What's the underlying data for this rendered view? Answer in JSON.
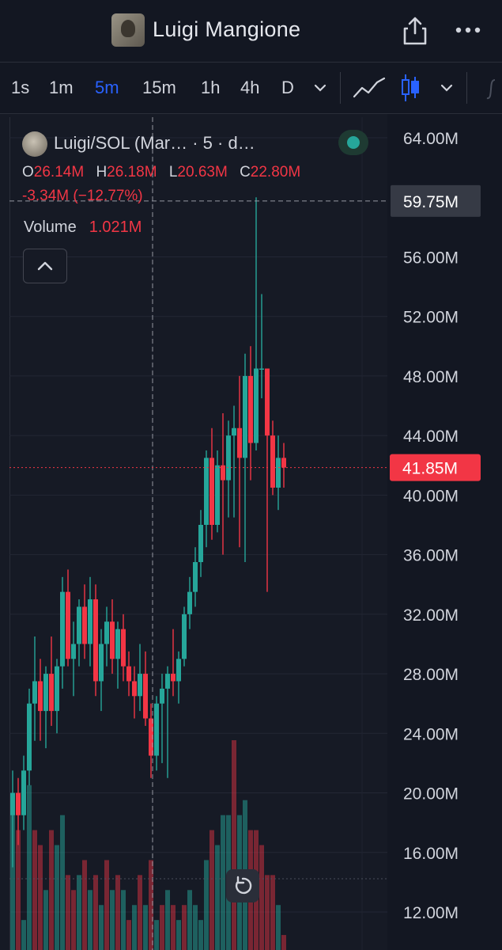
{
  "header": {
    "title": "Luigi Mangione",
    "avatar_icon": "avatar-image",
    "share_icon": "share-icon",
    "more_icon": "more-horizontal-icon"
  },
  "toolbar": {
    "timeframes": [
      "1s",
      "1m",
      "5m",
      "15m",
      "1h",
      "4h",
      "D"
    ],
    "active_timeframe": "5m",
    "accent": "#2962ff"
  },
  "legend": {
    "title": "Luigi/SOL (Mar… · 5 · d…",
    "ohlc": [
      {
        "key": "O",
        "value": "26.14M"
      },
      {
        "key": "H",
        "value": "26.18M"
      },
      {
        "key": "L",
        "value": "20.63M"
      },
      {
        "key": "C",
        "value": "22.80M"
      }
    ],
    "change": "-3.34M (−12.77%)",
    "volume_label": "Volume",
    "volume_value": "1.021M"
  },
  "colors": {
    "up": "#26a69a",
    "down": "#f23645",
    "background": "#161a25"
  },
  "chart_data": {
    "type": "candlestick",
    "ylim": [
      10,
      66
    ],
    "y_ticks": [
      "64.00M",
      "56.00M",
      "52.00M",
      "48.00M",
      "44.00M",
      "40.00M",
      "36.00M",
      "32.00M",
      "28.00M",
      "24.00M",
      "20.00M",
      "16.00M",
      "12.00M"
    ],
    "crosshair_price_label": "59.75M",
    "crosshair_price": 59.75,
    "last_price_label": "41.85M",
    "last_price": 41.85,
    "candles": [
      [
        18.5,
        21.5,
        15.0,
        20.0
      ],
      [
        20.0,
        21.0,
        16.5,
        18.5
      ],
      [
        18.5,
        22.5,
        17.5,
        21.5
      ],
      [
        21.5,
        27.0,
        20.5,
        26.0
      ],
      [
        26.0,
        30.5,
        23.5,
        27.5
      ],
      [
        27.5,
        29.0,
        23.5,
        25.5
      ],
      [
        25.5,
        28.5,
        23.0,
        28.0
      ],
      [
        28.0,
        30.5,
        24.5,
        25.5
      ],
      [
        25.5,
        29.0,
        24.0,
        28.5
      ],
      [
        28.5,
        34.5,
        27.0,
        33.5
      ],
      [
        33.5,
        35.0,
        28.5,
        29.0
      ],
      [
        29.0,
        31.5,
        26.5,
        30.0
      ],
      [
        30.0,
        33.0,
        28.5,
        32.5
      ],
      [
        32.5,
        34.0,
        29.0,
        30.0
      ],
      [
        30.0,
        34.5,
        28.5,
        33.0
      ],
      [
        33.0,
        34.0,
        26.5,
        27.5
      ],
      [
        27.5,
        31.0,
        25.5,
        30.0
      ],
      [
        30.0,
        32.5,
        28.5,
        31.5
      ],
      [
        31.5,
        33.0,
        28.0,
        29.0
      ],
      [
        29.0,
        31.5,
        27.0,
        31.0
      ],
      [
        31.0,
        32.0,
        27.5,
        28.5
      ],
      [
        28.5,
        29.5,
        26.5,
        27.5
      ],
      [
        27.5,
        28.5,
        25.0,
        26.5
      ],
      [
        26.5,
        30.0,
        25.5,
        28.0
      ],
      [
        28.0,
        29.5,
        24.5,
        25.0
      ],
      [
        25.0,
        26.0,
        21.0,
        22.5
      ],
      [
        22.5,
        26.5,
        21.5,
        26.0
      ],
      [
        26.0,
        28.0,
        22.0,
        27.0
      ],
      [
        27.0,
        28.5,
        21.0,
        28.0
      ],
      [
        28.0,
        31.0,
        26.5,
        27.5
      ],
      [
        27.5,
        29.5,
        26.0,
        29.0
      ],
      [
        29.0,
        32.5,
        28.5,
        32.0
      ],
      [
        32.0,
        34.5,
        31.0,
        33.5
      ],
      [
        33.5,
        36.5,
        32.5,
        35.5
      ],
      [
        35.5,
        39.0,
        34.5,
        38.0
      ],
      [
        38.0,
        43.0,
        36.5,
        42.5
      ],
      [
        42.5,
        44.5,
        37.0,
        38.0
      ],
      [
        38.0,
        43.0,
        37.5,
        42.0
      ],
      [
        42.0,
        45.5,
        36.0,
        41.0
      ],
      [
        41.0,
        45.0,
        38.5,
        44.0
      ],
      [
        44.0,
        46.0,
        38.5,
        44.5
      ],
      [
        44.5,
        48.0,
        36.5,
        42.5
      ],
      [
        42.5,
        49.5,
        35.5,
        48.0
      ],
      [
        48.0,
        50.0,
        41.0,
        43.5
      ],
      [
        43.5,
        60.0,
        43.0,
        48.5
      ],
      [
        48.5,
        53.5,
        46.5,
        48.5
      ],
      [
        48.5,
        48.5,
        33.5,
        44.0
      ],
      [
        44.0,
        45.0,
        40.0,
        40.5
      ],
      [
        40.5,
        44.0,
        39.0,
        42.5
      ],
      [
        42.5,
        43.5,
        40.5,
        41.85
      ]
    ],
    "volume": [
      [
        20,
        "up"
      ],
      [
        18,
        "down"
      ],
      [
        12,
        "up"
      ],
      [
        21,
        "up"
      ],
      [
        18,
        "down"
      ],
      [
        17,
        "down"
      ],
      [
        14,
        "up"
      ],
      [
        18,
        "down"
      ],
      [
        17,
        "up"
      ],
      [
        19,
        "up"
      ],
      [
        15,
        "down"
      ],
      [
        14,
        "down"
      ],
      [
        15,
        "up"
      ],
      [
        16,
        "down"
      ],
      [
        14,
        "up"
      ],
      [
        15,
        "down"
      ],
      [
        13,
        "up"
      ],
      [
        16,
        "down"
      ],
      [
        14,
        "up"
      ],
      [
        15,
        "down"
      ],
      [
        14,
        "up"
      ],
      [
        12,
        "down"
      ],
      [
        13,
        "up"
      ],
      [
        15,
        "down"
      ],
      [
        13,
        "up"
      ],
      [
        16,
        "down"
      ],
      [
        12,
        "up"
      ],
      [
        13,
        "down"
      ],
      [
        14,
        "up"
      ],
      [
        13,
        "down"
      ],
      [
        12,
        "up"
      ],
      [
        13,
        "down"
      ],
      [
        14,
        "up"
      ],
      [
        13,
        "up"
      ],
      [
        12,
        "up"
      ],
      [
        16,
        "up"
      ],
      [
        18,
        "down"
      ],
      [
        17,
        "up"
      ],
      [
        19,
        "up"
      ],
      [
        19,
        "up"
      ],
      [
        24,
        "down"
      ],
      [
        19,
        "up"
      ],
      [
        20,
        "up"
      ],
      [
        18,
        "down"
      ],
      [
        18,
        "down"
      ],
      [
        17,
        "down"
      ],
      [
        15,
        "down"
      ],
      [
        15,
        "down"
      ],
      [
        13,
        "up"
      ],
      [
        11,
        "down"
      ]
    ]
  }
}
